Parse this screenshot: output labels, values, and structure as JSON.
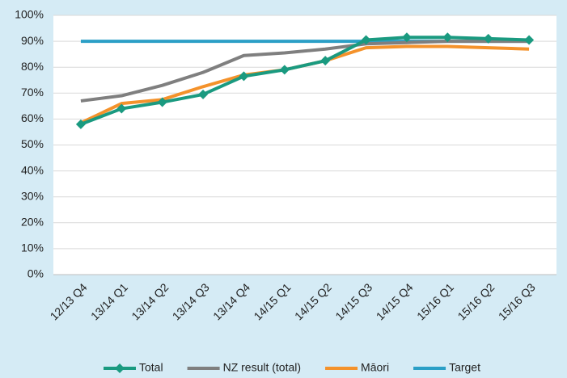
{
  "chart_data": {
    "type": "line",
    "categories": [
      "12/13 Q4",
      "13/14 Q1",
      "13/14 Q2",
      "13/14 Q3",
      "13/14 Q4",
      "14/15 Q1",
      "14/15 Q2",
      "14/15 Q3",
      "14/15 Q4",
      "15/16 Q1",
      "15/16 Q2",
      "15/16 Q3"
    ],
    "series": [
      {
        "name": "Total",
        "color": "#1a9a80",
        "marker": "diamond",
        "values": [
          58,
          64,
          66.5,
          69.5,
          76.5,
          79,
          82.5,
          90.5,
          91.5,
          91.5,
          91,
          90.5
        ]
      },
      {
        "name": "NZ result (total)",
        "color": "#7f7f7f",
        "values": [
          67,
          69,
          73,
          78,
          84.5,
          85.5,
          87,
          89,
          89.5,
          90,
          90,
          90
        ]
      },
      {
        "name": "Māori",
        "color": "#f4922b",
        "values": [
          58.5,
          66,
          67.5,
          72.5,
          77,
          79,
          82.5,
          87.5,
          88,
          88,
          87.5,
          87
        ]
      },
      {
        "name": "Target",
        "color": "#2b9fc6",
        "values": [
          90,
          90,
          90,
          90,
          90,
          90,
          90,
          90,
          90,
          90,
          90,
          90
        ]
      }
    ],
    "ylim": [
      0,
      100
    ],
    "yticks": [
      {
        "value": 0,
        "label": "0%"
      },
      {
        "value": 10,
        "label": "10%"
      },
      {
        "value": 20,
        "label": "20%"
      },
      {
        "value": 30,
        "label": "30%"
      },
      {
        "value": 40,
        "label": "40%"
      },
      {
        "value": 50,
        "label": "50%"
      },
      {
        "value": 60,
        "label": "60%"
      },
      {
        "value": 70,
        "label": "70%"
      },
      {
        "value": 80,
        "label": "80%"
      },
      {
        "value": 90,
        "label": "90%"
      },
      {
        "value": 100,
        "label": "100%"
      }
    ],
    "grid": true,
    "legend": "bottom"
  }
}
